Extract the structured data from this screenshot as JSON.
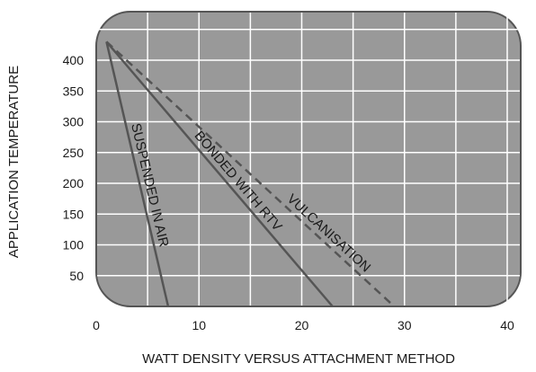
{
  "chart_data": {
    "type": "line",
    "title": "",
    "xlabel": "WATT DENSITY VERSUS ATTACHMENT METHOD",
    "ylabel": "APPLICATION TEMPERATURE",
    "xlim": [
      0,
      40
    ],
    "ylim": [
      0,
      450
    ],
    "x_ticks": [
      "0",
      "10",
      "20",
      "30",
      "40"
    ],
    "y_ticks": [
      "50",
      "100",
      "150",
      "200",
      "250",
      "300",
      "350",
      "400"
    ],
    "grid": true,
    "legend": "none",
    "colors": {
      "plot_background": "#999999",
      "grid": "#ffffff",
      "lines": "#555555",
      "border": "#555555"
    },
    "series": [
      {
        "name": "SUSPENDED IN AIR",
        "style": "solid",
        "x": [
          1,
          7
        ],
        "y": [
          430,
          0
        ]
      },
      {
        "name": "BONDED WITH RTV",
        "style": "solid",
        "x": [
          1,
          23
        ],
        "y": [
          430,
          0
        ]
      },
      {
        "name": "VULCANISATION",
        "style": "dashed",
        "x": [
          1,
          29
        ],
        "y": [
          430,
          0
        ]
      }
    ]
  }
}
